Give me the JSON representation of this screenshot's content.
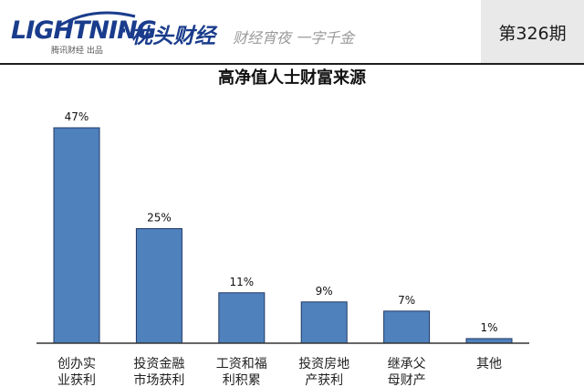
{
  "header": {
    "logo_text": "LIGHTNING",
    "logo_subtitle": "腾讯财经 出品",
    "brand_separator": "·",
    "brand_name": "枕头财经",
    "slogan": "财经宵夜 一字千金",
    "issue": "第326期"
  },
  "colors": {
    "brand": "#1a3c8c",
    "bar_fill": "#4f81bd",
    "bar_stroke": "#1f3864"
  },
  "icons": [
    "lightning-swoosh-icon"
  ],
  "chart_data": {
    "type": "bar",
    "title": "高净值人士财富来源",
    "categories": [
      [
        "创办实",
        "业获利"
      ],
      [
        "投资金融",
        "市场获利"
      ],
      [
        "工资和福",
        "利积累"
      ],
      [
        "投资房地",
        "产获利"
      ],
      [
        "继承父",
        "母财产"
      ],
      [
        "其他"
      ]
    ],
    "values": [
      47,
      25,
      11,
      9,
      7,
      1
    ],
    "data_labels": [
      "47%",
      "25%",
      "11%",
      "9%",
      "7%",
      "1%"
    ],
    "ylim": [
      0,
      50
    ],
    "grid": false,
    "legend": "none"
  }
}
